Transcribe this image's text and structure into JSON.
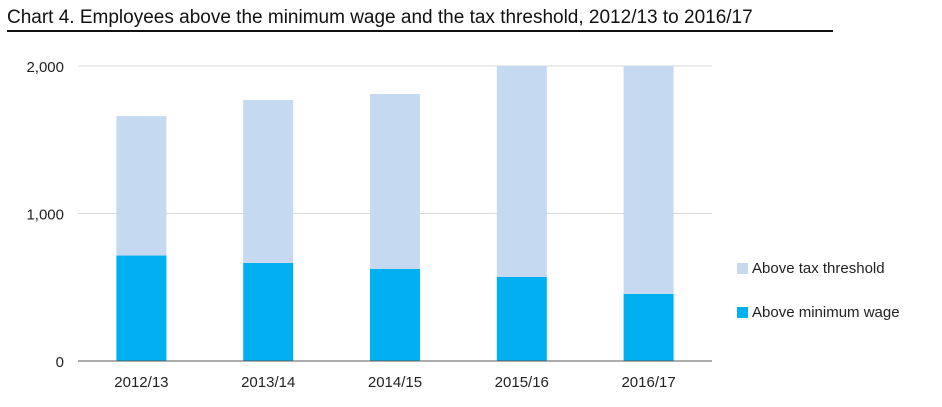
{
  "title": "Chart 4. Employees above the minimum wage and the tax threshold, 2012/13 to 2016/17",
  "colors": {
    "above_minimum_wage": "#00b0f0",
    "above_tax_threshold": "#c5d9f1",
    "gridline": "#d9d9d9",
    "axis": "#595959"
  },
  "chart_data": {
    "type": "bar",
    "stacked": true,
    "title": "Chart 4. Employees above the minimum wage and the tax threshold, 2012/13 to 2016/17",
    "categories": [
      "2012/13",
      "2013/14",
      "2014/15",
      "2015/16",
      "2016/17"
    ],
    "series": [
      {
        "name": "Above minimum wage",
        "values": [
          715,
          665,
          625,
          570,
          455
        ]
      },
      {
        "name": "Above tax threshold",
        "values": [
          945,
          1105,
          1185,
          1430,
          1545
        ]
      }
    ],
    "ylim": [
      0,
      2000
    ],
    "yticks": [
      0,
      1000,
      2000
    ],
    "ytick_labels": [
      "0",
      "1,000",
      "2,000"
    ],
    "xlabel": "",
    "ylabel": "",
    "grid": true,
    "legend_position": "right"
  }
}
